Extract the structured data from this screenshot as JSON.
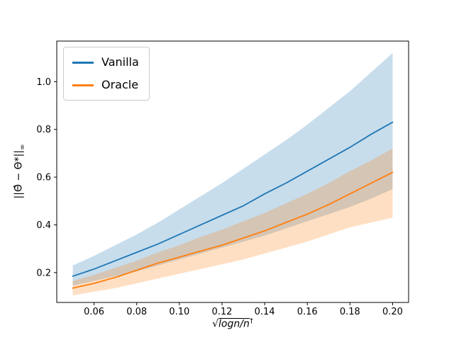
{
  "figure": {
    "background": "#ffffff",
    "frame_color": "#000000"
  },
  "axes": {
    "xlabel_radical": "√",
    "xlabel_radicand": "logn/n",
    "xlabel_sup": "†",
    "ylabel_main": "||Θ̂ − Θ*||",
    "ylabel_sub": "∞"
  },
  "chart_data": {
    "type": "line",
    "title": "",
    "xlabel": "√(logn/n)†",
    "ylabel": "||Θ̂ − Θ*||∞",
    "xlim": [
      0.0425,
      0.2075
    ],
    "ylim": [
      0.075,
      1.17
    ],
    "grid": false,
    "legend_position": "upper left",
    "x": [
      0.05,
      0.06,
      0.07,
      0.08,
      0.09,
      0.1,
      0.11,
      0.12,
      0.13,
      0.14,
      0.15,
      0.16,
      0.17,
      0.18,
      0.19,
      0.2
    ],
    "series": [
      {
        "name": "Vanilla",
        "color": "#1f77b4",
        "band_alpha": 0.25,
        "values": [
          0.185,
          0.215,
          0.25,
          0.285,
          0.32,
          0.36,
          0.4,
          0.44,
          0.48,
          0.53,
          0.575,
          0.625,
          0.675,
          0.725,
          0.78,
          0.83
        ],
        "band_upper": [
          0.23,
          0.27,
          0.315,
          0.36,
          0.41,
          0.465,
          0.52,
          0.575,
          0.635,
          0.695,
          0.755,
          0.82,
          0.89,
          0.96,
          1.04,
          1.12
        ],
        "band_lower": [
          0.145,
          0.165,
          0.185,
          0.205,
          0.23,
          0.255,
          0.28,
          0.305,
          0.33,
          0.355,
          0.385,
          0.415,
          0.445,
          0.475,
          0.51,
          0.55
        ]
      },
      {
        "name": "Oracle",
        "color": "#ff7f0e",
        "band_alpha": 0.25,
        "values": [
          0.135,
          0.155,
          0.18,
          0.21,
          0.24,
          0.265,
          0.29,
          0.315,
          0.345,
          0.375,
          0.41,
          0.445,
          0.485,
          0.53,
          0.575,
          0.62
        ],
        "band_upper": [
          0.165,
          0.19,
          0.22,
          0.25,
          0.285,
          0.315,
          0.35,
          0.38,
          0.415,
          0.45,
          0.49,
          0.53,
          0.575,
          0.625,
          0.67,
          0.72
        ],
        "band_lower": [
          0.105,
          0.12,
          0.135,
          0.155,
          0.175,
          0.195,
          0.215,
          0.235,
          0.255,
          0.28,
          0.305,
          0.33,
          0.36,
          0.39,
          0.41,
          0.43
        ]
      }
    ],
    "xticks": {
      "values": [
        0.06,
        0.08,
        0.1,
        0.12,
        0.14,
        0.16,
        0.18,
        0.2
      ],
      "labels": [
        "0.06",
        "0.08",
        "0.10",
        "0.12",
        "0.14",
        "0.16",
        "0.18",
        "0.20"
      ]
    },
    "yticks": {
      "values": [
        0.2,
        0.4,
        0.6,
        0.8,
        1.0
      ],
      "labels": [
        "0.2",
        "0.4",
        "0.6",
        "0.8",
        "1.0"
      ]
    }
  }
}
